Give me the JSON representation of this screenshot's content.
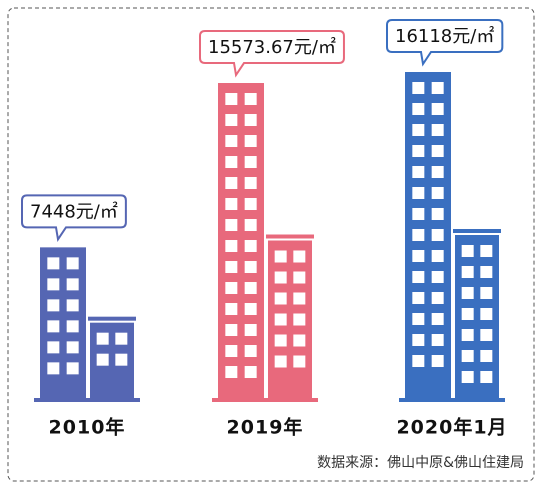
{
  "chart_data": {
    "type": "bar",
    "categories": [
      "2010年",
      "2019年",
      "2020年1月"
    ],
    "values": [
      7448,
      15573.67,
      16118
    ],
    "value_labels": [
      "7448元/㎡",
      "15573.67元/㎡",
      "16118元/㎡"
    ],
    "colors": [
      "#5566b3",
      "#e8697c",
      "#3a6fc0"
    ],
    "source": "数据来源：佛山中原&佛山住建局"
  }
}
